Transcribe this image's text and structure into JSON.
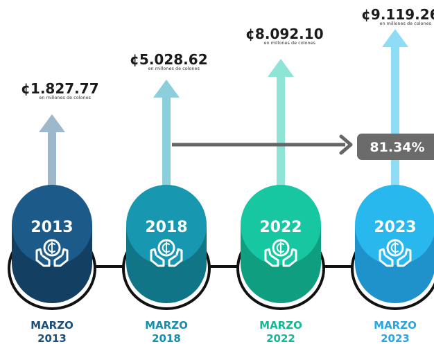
{
  "items": [
    {
      "value": "¢1.827.77",
      "unit": "en millones de colones",
      "circle_label": "2013",
      "month": "MARZO",
      "year": "2013"
    },
    {
      "value": "¢5.028.62",
      "unit": "en millones de colones",
      "circle_label": "2018",
      "month": "MARZO",
      "year": "2018"
    },
    {
      "value": "¢8.092.10",
      "unit": "en millones de colones",
      "circle_label": "2022",
      "month": "MARZO",
      "year": "2022"
    },
    {
      "value": "¢9.119.26",
      "unit": "en millones de colones",
      "circle_label": "2023",
      "month": "MARZO",
      "year": "2023"
    }
  ],
  "growth": "81.34%"
}
